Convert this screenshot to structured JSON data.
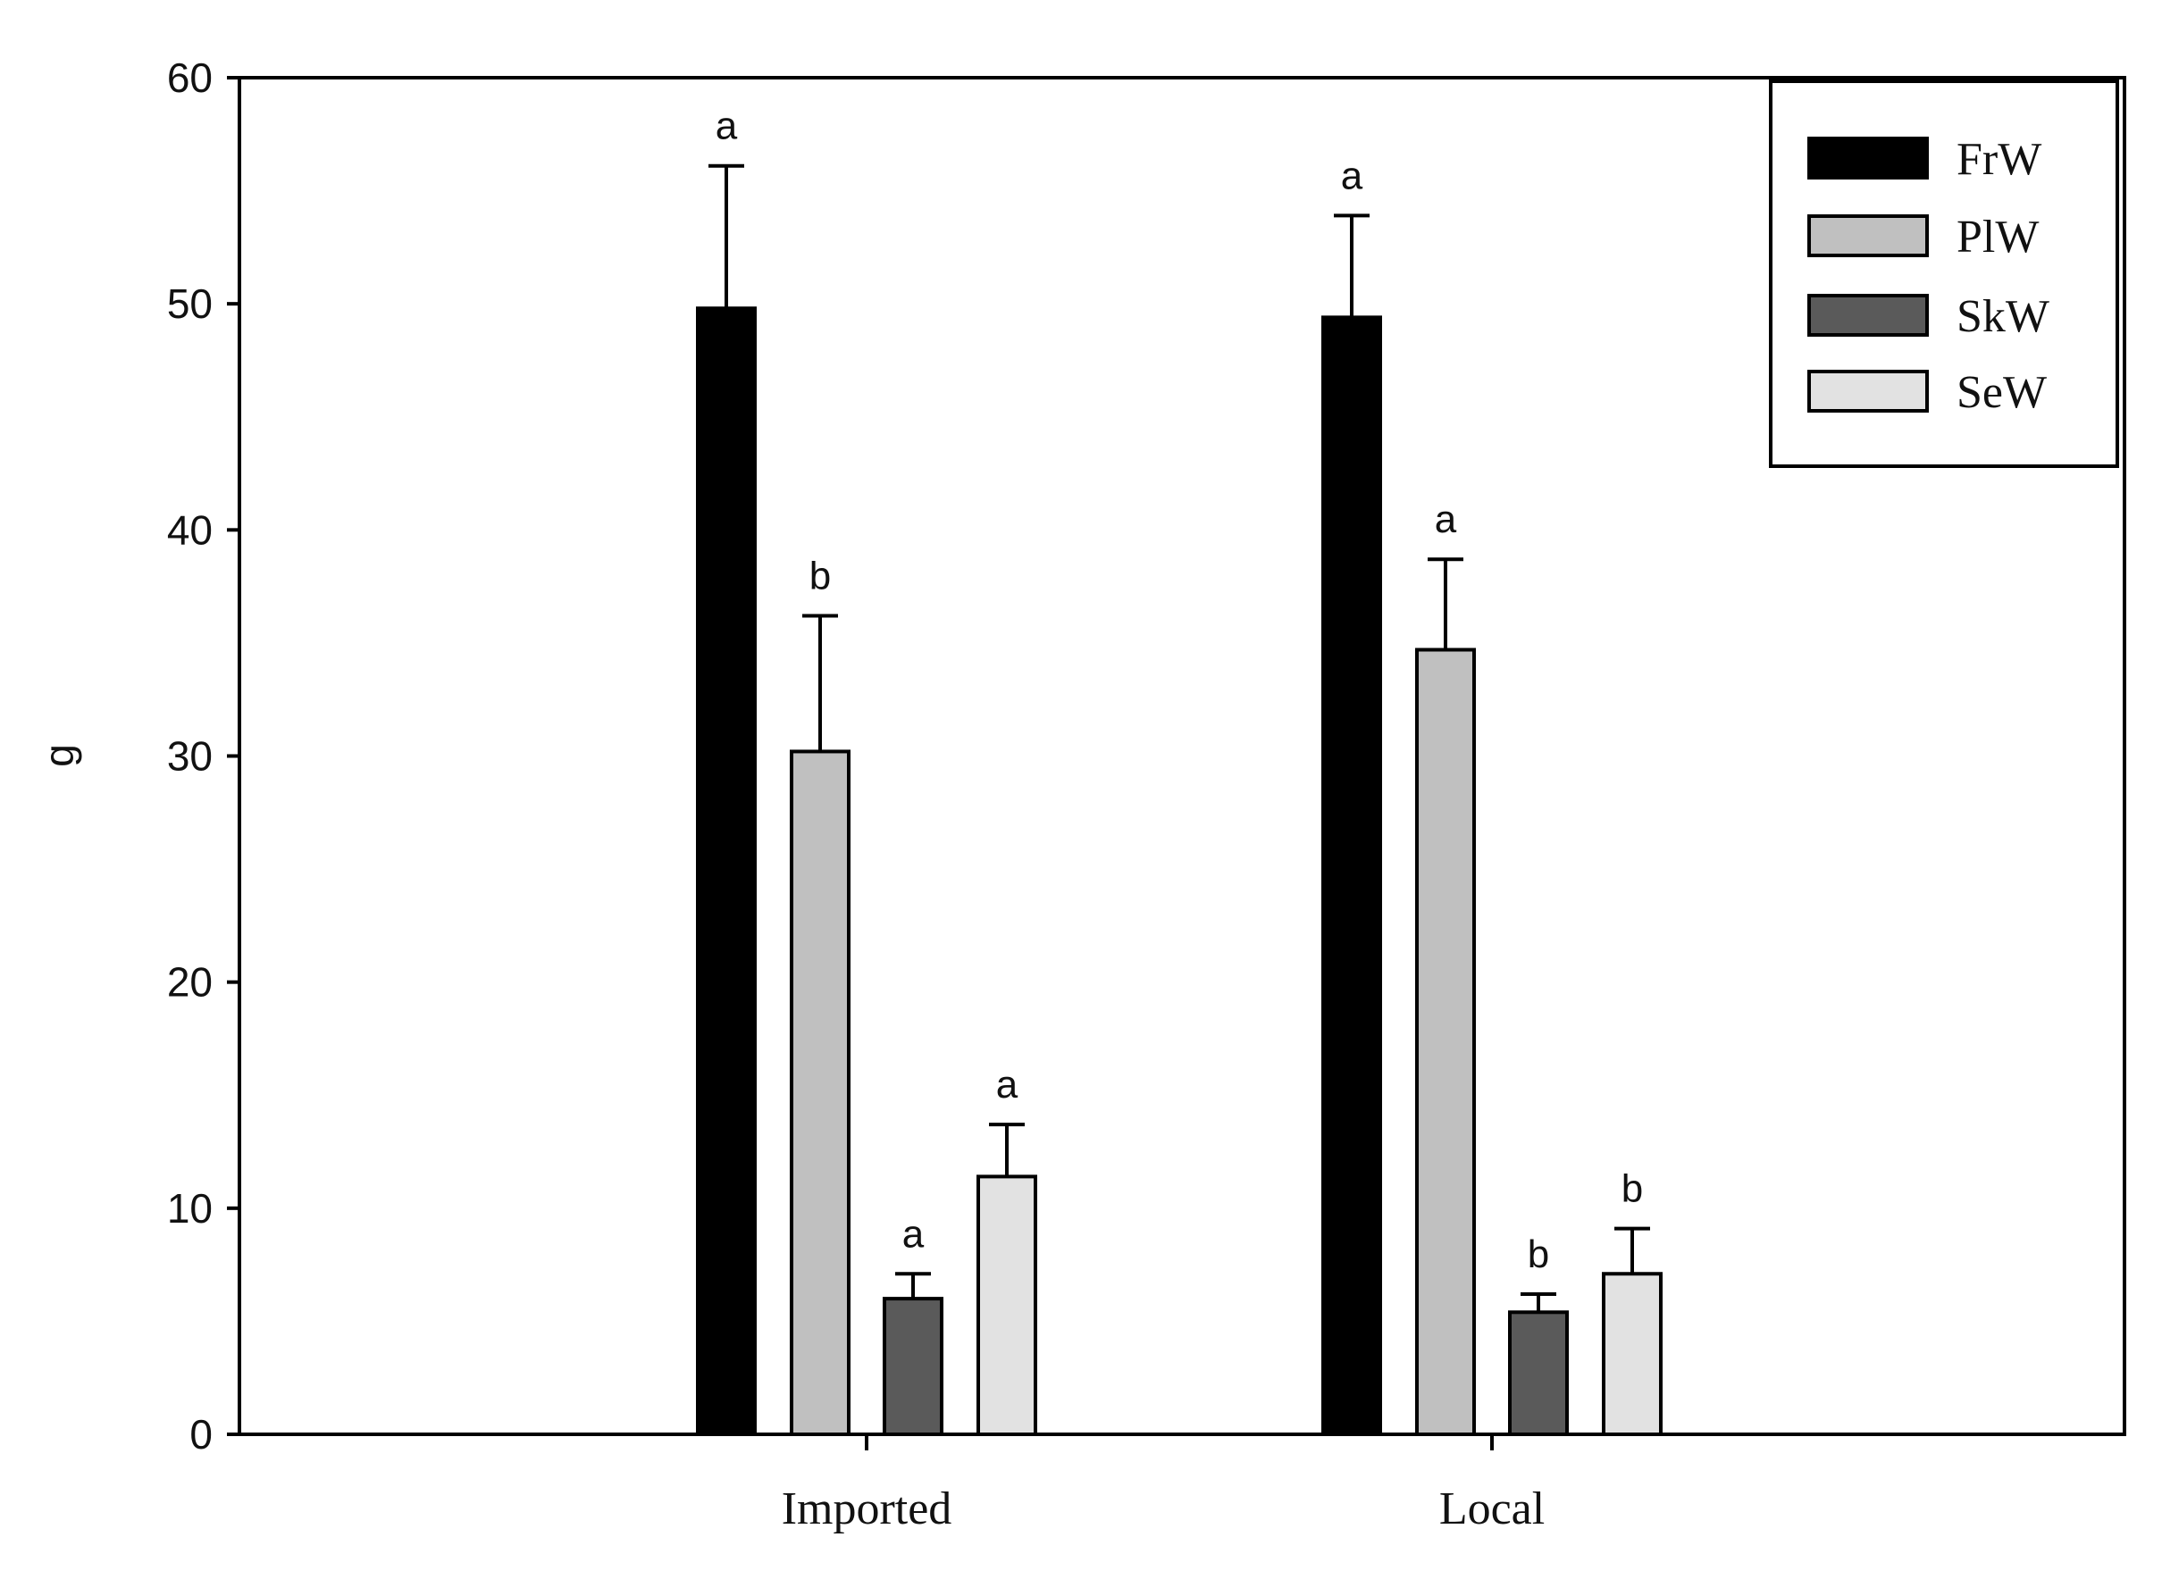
{
  "chart_data": {
    "type": "bar",
    "xlabel": "",
    "ylabel": "g",
    "ylim": [
      0,
      60
    ],
    "yticks": [
      0,
      10,
      20,
      30,
      40,
      50,
      60
    ],
    "categories": [
      "Imported",
      "Local"
    ],
    "series": [
      {
        "name": "FrW",
        "color": "#000000",
        "values": [
          49.8,
          49.4
        ],
        "errors": [
          6.3,
          4.5
        ],
        "sig": [
          "a",
          "a"
        ]
      },
      {
        "name": "PlW",
        "color": "#c0c0c0",
        "values": [
          30.2,
          34.7
        ],
        "errors": [
          6.0,
          4.0
        ],
        "sig": [
          "b",
          "a"
        ]
      },
      {
        "name": "SkW",
        "color": "#5a5a5a",
        "values": [
          6.0,
          5.4
        ],
        "errors": [
          1.1,
          0.8
        ],
        "sig": [
          "a",
          "b"
        ]
      },
      {
        "name": "SeW",
        "color": "#e2e2e2",
        "values": [
          11.4,
          7.1
        ],
        "errors": [
          2.3,
          2.0
        ],
        "sig": [
          "a",
          "b"
        ]
      }
    ],
    "grid": false,
    "legend_position": "top-right"
  }
}
